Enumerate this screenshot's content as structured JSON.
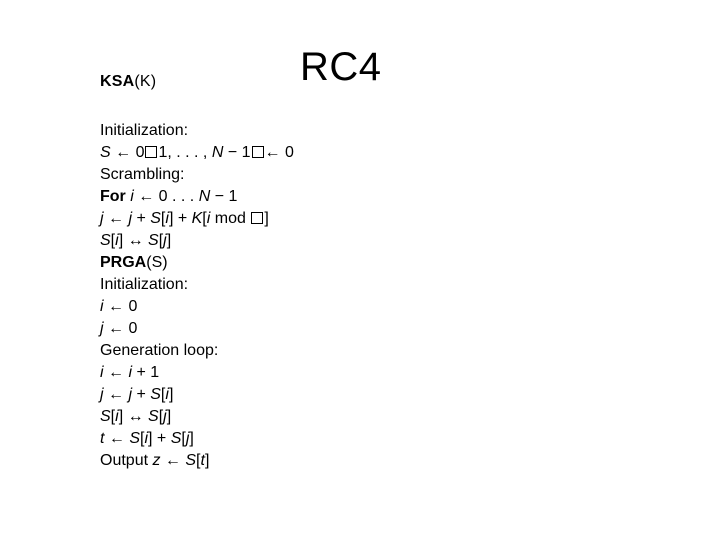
{
  "title": "RC4",
  "ksa_prefix_bold": "KSA",
  "ksa_suffix": "(K)",
  "lines": {
    "l0": "Initialization:",
    "l1_a": "S",
    "l1_b": " ← 0",
    "l1_c": "1, . . . , ",
    "l1_d": "N",
    "l1_e": " − 1",
    "l1_f": "← 0",
    "l2": "Scrambling:",
    "l3_a": "For ",
    "l3_b": "i",
    "l3_c": " ← 0 . . . ",
    "l3_d": "N",
    "l3_e": " − 1",
    "l4_a": "j",
    "l4_b": " ← ",
    "l4_c": "j",
    "l4_d": " + ",
    "l4_e": "S",
    "l4_f": "[",
    "l4_g": "i",
    "l4_h": "] + ",
    "l4_i": "K",
    "l4_j": "[",
    "l4_k": "i",
    "l4_l": " mod ",
    "l4_m": "]",
    "l5_a": "S",
    "l5_b": "[",
    "l5_c": "i",
    "l5_d": "] ↔ ",
    "l5_e": "S",
    "l5_f": "[",
    "l5_g": "j",
    "l5_h": "]",
    "l6_a": "PRGA",
    "l6_b": "(S)",
    "l7": "Initialization:",
    "l8_a": "i",
    "l8_b": " ← 0",
    "l9_a": "j",
    "l9_b": " ← 0",
    "l10": "Generation loop:",
    "l11_a": "i",
    "l11_b": " ← ",
    "l11_c": "i",
    "l11_d": " + 1",
    "l12_a": "j",
    "l12_b": " ← ",
    "l12_c": "j",
    "l12_d": " + ",
    "l12_e": "S",
    "l12_f": "[",
    "l12_g": "i",
    "l12_h": "]",
    "l13_a": "S",
    "l13_b": "[",
    "l13_c": "i",
    "l13_d": "] ↔ ",
    "l13_e": "S",
    "l13_f": "[",
    "l13_g": "j",
    "l13_h": "]",
    "l14_a": "t",
    "l14_b": " ← ",
    "l14_c": "S",
    "l14_d": "[",
    "l14_e": "i",
    "l14_f": "] + ",
    "l14_g": "S",
    "l14_h": "[",
    "l14_i": "j",
    "l14_j": "]",
    "l15_a": "Output ",
    "l15_b": "z",
    "l15_c": " ← ",
    "l15_d": "S",
    "l15_e": "[",
    "l15_f": "t",
    "l15_g": "]"
  }
}
